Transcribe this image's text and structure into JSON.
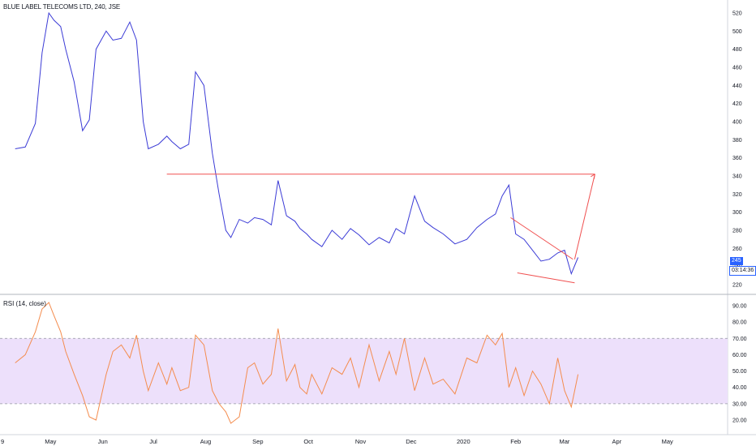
{
  "header": {
    "title": "BLUE LABEL TELECOMS LTD, 240, JSE"
  },
  "rsi_panel": {
    "title": "RSI (14, close)"
  },
  "price_badge": {
    "value": "245",
    "countdown": "03:14:36"
  },
  "colors": {
    "price_line": "#3b3bd6",
    "rsi_line": "#f48c4e",
    "rsi_band": "#ede0fb",
    "drawing": "#f05050",
    "badge": "#2962ff"
  },
  "chart_data": [
    {
      "type": "line",
      "title": "BLUE LABEL TELECOMS LTD, 240, JSE",
      "ylim": [
        210,
        528
      ],
      "y_ticks": [
        220,
        240,
        260,
        280,
        300,
        320,
        340,
        360,
        380,
        400,
        420,
        440,
        460,
        480,
        500,
        520
      ],
      "x_ticks": [
        "9",
        "May",
        "Jun",
        "Jul",
        "Aug",
        "Sep",
        "Oct",
        "Nov",
        "Dec",
        "2020",
        "Feb",
        "Mar",
        "Apr",
        "May"
      ],
      "grid": false,
      "series": [
        {
          "name": "",
          "x": [
            "2019-04-10",
            "2019-04-16",
            "2019-04-22",
            "2019-04-26",
            "2019-04-30",
            "2019-05-03",
            "2019-05-07",
            "2019-05-10",
            "2019-05-15",
            "2019-05-20",
            "2019-05-24",
            "2019-05-28",
            "2019-06-03",
            "2019-06-07",
            "2019-06-12",
            "2019-06-17",
            "2019-06-21",
            "2019-06-25",
            "2019-06-28",
            "2019-07-04",
            "2019-07-09",
            "2019-07-12",
            "2019-07-17",
            "2019-07-22",
            "2019-07-26",
            "2019-07-31",
            "2019-08-05",
            "2019-08-09",
            "2019-08-13",
            "2019-08-16",
            "2019-08-21",
            "2019-08-26",
            "2019-08-30",
            "2019-09-04",
            "2019-09-09",
            "2019-09-13",
            "2019-09-18",
            "2019-09-23",
            "2019-09-26",
            "2019-09-30",
            "2019-10-03",
            "2019-10-09",
            "2019-10-15",
            "2019-10-21",
            "2019-10-26",
            "2019-10-31",
            "2019-11-06",
            "2019-11-12",
            "2019-11-18",
            "2019-11-22",
            "2019-11-27",
            "2019-12-03",
            "2019-12-09",
            "2019-12-14",
            "2019-12-20",
            "2019-12-27",
            "2020-01-03",
            "2020-01-09",
            "2020-01-15",
            "2020-01-20",
            "2020-01-24",
            "2020-01-28",
            "2020-02-01",
            "2020-02-06",
            "2020-02-11",
            "2020-02-16",
            "2020-02-21",
            "2020-02-26",
            "2020-03-01",
            "2020-03-05",
            "2020-03-09"
          ],
          "values": [
            370,
            372,
            398,
            476,
            520,
            512,
            505,
            480,
            444,
            390,
            402,
            480,
            500,
            490,
            492,
            510,
            490,
            400,
            370,
            375,
            384,
            378,
            370,
            375,
            455,
            440,
            365,
            320,
            280,
            272,
            292,
            288,
            294,
            292,
            286,
            335,
            296,
            290,
            282,
            276,
            270,
            262,
            280,
            270,
            282,
            275,
            264,
            272,
            266,
            282,
            276,
            318,
            290,
            283,
            276,
            265,
            270,
            283,
            292,
            298,
            318,
            330,
            276,
            270,
            258,
            246,
            248,
            255,
            258,
            232,
            250
          ]
        }
      ]
    },
    {
      "type": "line",
      "title": "RSI (14, close)",
      "ylim": [
        15,
        95
      ],
      "y_ticks": [
        20,
        30,
        40,
        50,
        60,
        70,
        80,
        90
      ],
      "y_tick_labels": [
        "20.00",
        "30.00",
        "40.00",
        "50.00",
        "60.00",
        "70.00",
        "80.00",
        "90.00"
      ],
      "bands": [
        30,
        70
      ],
      "series": [
        {
          "name": "",
          "x": [
            "2019-04-10",
            "2019-04-16",
            "2019-04-22",
            "2019-04-26",
            "2019-04-30",
            "2019-05-03",
            "2019-05-07",
            "2019-05-10",
            "2019-05-15",
            "2019-05-20",
            "2019-05-24",
            "2019-05-28",
            "2019-06-03",
            "2019-06-07",
            "2019-06-12",
            "2019-06-17",
            "2019-06-21",
            "2019-06-25",
            "2019-06-28",
            "2019-07-04",
            "2019-07-09",
            "2019-07-12",
            "2019-07-17",
            "2019-07-22",
            "2019-07-26",
            "2019-07-31",
            "2019-08-05",
            "2019-08-09",
            "2019-08-13",
            "2019-08-16",
            "2019-08-21",
            "2019-08-26",
            "2019-08-30",
            "2019-09-04",
            "2019-09-09",
            "2019-09-13",
            "2019-09-18",
            "2019-09-23",
            "2019-09-26",
            "2019-09-30",
            "2019-10-03",
            "2019-10-09",
            "2019-10-15",
            "2019-10-21",
            "2019-10-26",
            "2019-10-31",
            "2019-11-06",
            "2019-11-12",
            "2019-11-18",
            "2019-11-22",
            "2019-11-27",
            "2019-12-03",
            "2019-12-09",
            "2019-12-14",
            "2019-12-20",
            "2019-12-27",
            "2020-01-03",
            "2020-01-09",
            "2020-01-15",
            "2020-01-20",
            "2020-01-24",
            "2020-01-28",
            "2020-02-01",
            "2020-02-06",
            "2020-02-11",
            "2020-02-16",
            "2020-02-21",
            "2020-02-26",
            "2020-03-01",
            "2020-03-05",
            "2020-03-09"
          ],
          "values": [
            55,
            60,
            74,
            88,
            92,
            84,
            74,
            62,
            48,
            35,
            22,
            20,
            48,
            62,
            66,
            58,
            72,
            50,
            38,
            55,
            42,
            52,
            38,
            40,
            72,
            66,
            38,
            30,
            25,
            18,
            22,
            52,
            55,
            42,
            48,
            76,
            44,
            54,
            40,
            36,
            48,
            36,
            52,
            48,
            58,
            40,
            66,
            44,
            62,
            48,
            70,
            38,
            58,
            42,
            45,
            36,
            58,
            55,
            72,
            66,
            73,
            40,
            52,
            35,
            50,
            42,
            30,
            58,
            38,
            28,
            48
          ]
        }
      ]
    }
  ],
  "drawings": {
    "support_line": {
      "from": [
        "2019-07-09",
        342
      ],
      "to": [
        "2020-03-19",
        342
      ]
    },
    "projection_arrow": {
      "from": [
        "2020-03-07",
        248
      ],
      "to": [
        "2020-03-19",
        342
      ]
    },
    "wedge_upper": {
      "from": [
        "2020-01-29",
        294
      ],
      "to": [
        "2020-03-06",
        248
      ]
    },
    "wedge_lower": {
      "from": [
        "2020-02-02",
        233
      ],
      "to": [
        "2020-03-07",
        222
      ]
    }
  }
}
